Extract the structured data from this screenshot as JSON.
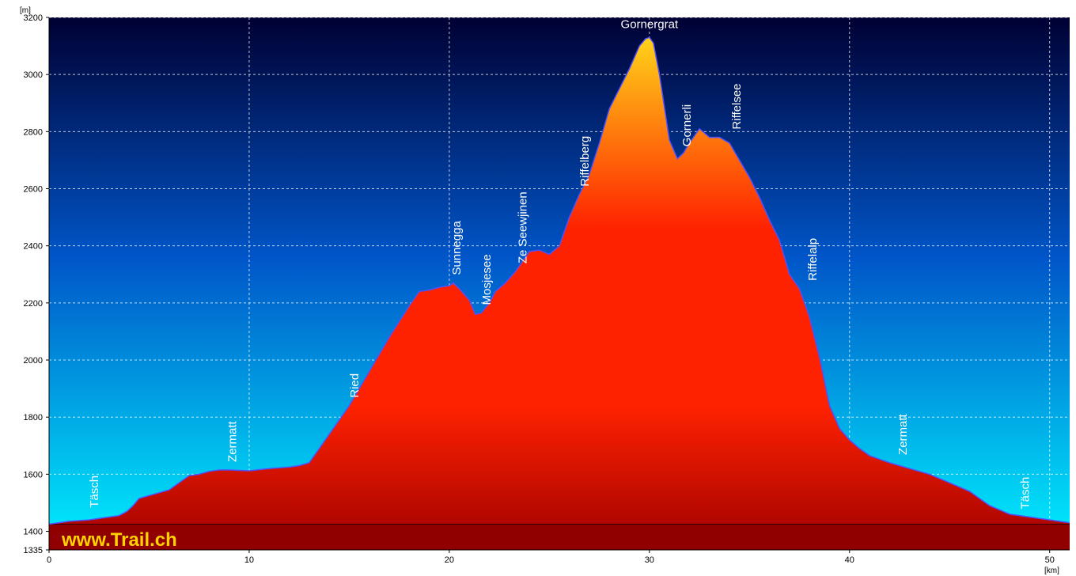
{
  "chart_data": {
    "type": "area",
    "x_unit": "[km]",
    "y_unit": "[m]",
    "xlim": [
      0,
      51
    ],
    "ylim": [
      1335,
      3200
    ],
    "x_ticks": [
      0,
      10,
      20,
      30,
      40,
      50
    ],
    "y_ticks": [
      1335,
      1400,
      1600,
      1800,
      2000,
      2200,
      2400,
      2600,
      2800,
      3000,
      3200
    ],
    "grid": true,
    "baseline_elevation": 1425,
    "watermark": "www.Trail.ch",
    "colors": {
      "sky_top": "#000033",
      "sky_mid": "#0055c8",
      "sky_bottom": "#00f0ff",
      "fill_top": "#ffd81a",
      "fill_mid": "#ff2200",
      "fill_bottom": "#a00000",
      "outline": "#5050ff",
      "below_baseline": "#900000",
      "watermark": "#ffd200"
    },
    "series": [
      {
        "x": [
          0,
          1,
          2,
          3,
          3.5,
          3.9,
          4.2,
          4.5,
          5,
          5.5,
          6,
          6.5,
          7,
          7.5,
          8,
          8.5,
          9,
          10,
          11,
          12,
          12.5,
          13,
          13.5,
          14,
          15,
          16,
          17,
          18,
          18.5,
          19,
          19.5,
          20,
          20.2,
          20.5,
          21,
          21.3,
          21.6,
          22,
          22.3,
          22.8,
          23.3,
          24,
          24.5,
          25,
          25.5,
          26,
          26.5,
          27,
          27.5,
          28,
          28.5,
          29,
          29.5,
          29.8,
          30,
          30.2,
          30.5,
          31,
          31.4,
          31.7,
          32,
          32.5,
          33,
          33.5,
          34,
          34.5,
          35,
          35.5,
          36,
          36.5,
          37,
          37.5,
          38,
          38.5,
          39,
          39.5,
          40,
          40.5,
          41,
          42,
          43,
          44,
          45,
          46,
          47,
          48,
          49,
          50,
          51
        ],
        "y": [
          1425,
          1435,
          1440,
          1450,
          1455,
          1470,
          1490,
          1515,
          1525,
          1535,
          1545,
          1570,
          1595,
          1600,
          1610,
          1615,
          1615,
          1612,
          1620,
          1625,
          1630,
          1640,
          1690,
          1740,
          1840,
          1960,
          2080,
          2190,
          2240,
          2245,
          2255,
          2260,
          2270,
          2250,
          2210,
          2160,
          2165,
          2200,
          2240,
          2270,
          2310,
          2380,
          2385,
          2370,
          2400,
          2500,
          2580,
          2650,
          2760,
          2880,
          2950,
          3020,
          3100,
          3125,
          3130,
          3110,
          3000,
          2770,
          2705,
          2725,
          2760,
          2810,
          2780,
          2780,
          2760,
          2700,
          2640,
          2570,
          2490,
          2420,
          2300,
          2250,
          2150,
          2010,
          1840,
          1760,
          1720,
          1690,
          1665,
          1640,
          1620,
          1600,
          1570,
          1540,
          1490,
          1460,
          1450,
          1440,
          1430
        ]
      }
    ],
    "annotations": [
      {
        "label": "Täsch",
        "x": 2.3,
        "y": 1455,
        "orientation": "vertical"
      },
      {
        "label": "Zermatt",
        "x": 9.2,
        "y": 1615,
        "orientation": "vertical"
      },
      {
        "label": "Ried",
        "x": 15.3,
        "y": 1840,
        "orientation": "vertical"
      },
      {
        "label": "Sunnegga",
        "x": 20.4,
        "y": 2270,
        "orientation": "vertical"
      },
      {
        "label": "Mosjesee",
        "x": 21.9,
        "y": 2165,
        "orientation": "vertical"
      },
      {
        "label": "Ze Seewjinen",
        "x": 23.7,
        "y": 2310,
        "orientation": "vertical"
      },
      {
        "label": "Riffelberg",
        "x": 26.8,
        "y": 2580,
        "orientation": "vertical"
      },
      {
        "label": "Gornergrat",
        "x": 30,
        "y": 3130,
        "orientation": "horizontal"
      },
      {
        "label": "Gornerli",
        "x": 31.9,
        "y": 2720,
        "orientation": "vertical"
      },
      {
        "label": "Riffelsee",
        "x": 34.4,
        "y": 2780,
        "orientation": "vertical"
      },
      {
        "label": "Riffelalp",
        "x": 38.2,
        "y": 2250,
        "orientation": "vertical"
      },
      {
        "label": "Zermatt",
        "x": 42.7,
        "y": 1640,
        "orientation": "vertical"
      },
      {
        "label": "Täsch",
        "x": 48.8,
        "y": 1450,
        "orientation": "vertical"
      }
    ]
  }
}
